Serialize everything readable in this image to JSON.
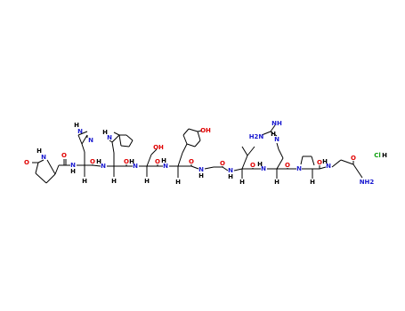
{
  "atoms": [
    {
      "label": "O"
    },
    {
      "label": "H"
    },
    {
      "label": "N"
    },
    {
      "label": "O"
    },
    {
      "label": "N"
    },
    {
      "label": "H"
    },
    {
      "label": "H"
    },
    {
      "label": "N"
    },
    {
      "label": "H"
    },
    {
      "label": "N"
    },
    {
      "label": "O"
    },
    {
      "label": "N"
    },
    {
      "label": "H"
    },
    {
      "label": "H"
    },
    {
      "label": "H"
    },
    {
      "label": "N"
    },
    {
      "label": "O"
    },
    {
      "label": "N"
    },
    {
      "label": "H"
    },
    {
      "label": "H"
    },
    {
      "label": "OH"
    },
    {
      "label": "O"
    },
    {
      "label": "N"
    },
    {
      "label": "H"
    },
    {
      "label": "H"
    },
    {
      "label": "OH"
    },
    {
      "label": "O"
    },
    {
      "label": "N"
    },
    {
      "label": "H"
    },
    {
      "label": "O"
    },
    {
      "label": "N"
    },
    {
      "label": "H"
    },
    {
      "label": "H"
    },
    {
      "label": "O"
    },
    {
      "label": "N"
    },
    {
      "label": "H"
    },
    {
      "label": "H2N"
    },
    {
      "label": "NH"
    },
    {
      "label": "H"
    },
    {
      "label": "N"
    },
    {
      "label": "H"
    },
    {
      "label": "O"
    },
    {
      "label": "N"
    },
    {
      "label": "H"
    },
    {
      "label": "O"
    },
    {
      "label": "N"
    },
    {
      "label": "H"
    },
    {
      "label": "O"
    },
    {
      "label": "NH2"
    },
    {
      "label": "Cl"
    },
    {
      "label": "H"
    }
  ]
}
